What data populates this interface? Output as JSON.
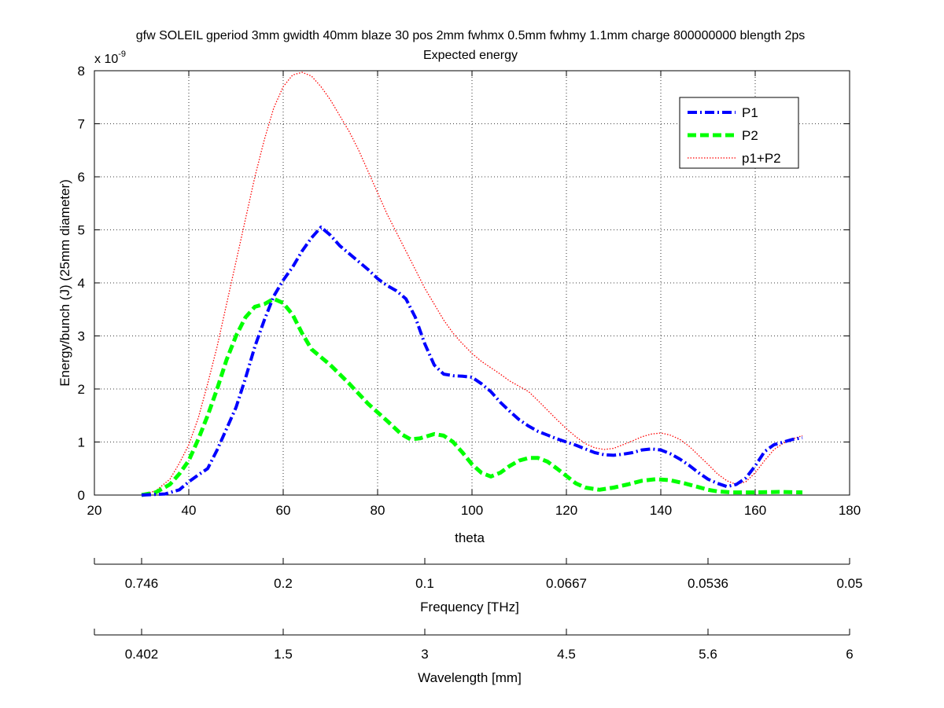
{
  "chart_data": {
    "type": "line",
    "title": "gfw SOLEIL gperiod 3mm gwidth 40mm blaze 30 pos 2mm fwhmx 0.5mm fwhmy 1.1mm charge 800000000 blength 2ps",
    "subtitle": "Expected energy",
    "xlabel": "theta",
    "ylabel": "Energy/bunch (J) (25mm diameter)",
    "y_multiplier_label": "x 10",
    "y_multiplier_exponent": "-9",
    "xlim": [
      20,
      180
    ],
    "ylim": [
      0,
      8
    ],
    "x_ticks": [
      20,
      40,
      60,
      80,
      100,
      120,
      140,
      160,
      180
    ],
    "y_ticks": [
      0,
      1,
      2,
      3,
      4,
      5,
      6,
      7,
      8
    ],
    "grid": true,
    "legend_position": "top-right",
    "series": [
      {
        "name": "P1",
        "color": "#0000ff",
        "style": "dash-dot",
        "x": [
          30,
          35,
          38,
          40,
          42,
          44,
          46,
          48,
          50,
          52,
          54,
          56,
          58,
          60,
          62,
          64,
          66,
          68,
          70,
          72,
          74,
          76,
          78,
          80,
          82,
          84,
          86,
          88,
          90,
          92,
          94,
          96,
          98,
          100,
          102,
          104,
          106,
          108,
          110,
          112,
          114,
          116,
          118,
          120,
          122,
          124,
          126,
          128,
          130,
          132,
          134,
          136,
          138,
          140,
          142,
          144,
          146,
          148,
          150,
          152,
          154,
          156,
          158,
          160,
          162,
          164,
          166,
          168,
          170
        ],
        "y": [
          0.0,
          0.02,
          0.1,
          0.25,
          0.38,
          0.5,
          0.85,
          1.25,
          1.65,
          2.2,
          2.8,
          3.3,
          3.75,
          4.05,
          4.3,
          4.6,
          4.85,
          5.05,
          4.9,
          4.7,
          4.55,
          4.4,
          4.25,
          4.08,
          3.95,
          3.85,
          3.7,
          3.35,
          2.85,
          2.45,
          2.28,
          2.25,
          2.24,
          2.22,
          2.1,
          1.95,
          1.75,
          1.58,
          1.42,
          1.3,
          1.2,
          1.13,
          1.06,
          1.0,
          0.94,
          0.87,
          0.8,
          0.76,
          0.75,
          0.77,
          0.8,
          0.85,
          0.87,
          0.85,
          0.78,
          0.68,
          0.56,
          0.42,
          0.3,
          0.22,
          0.16,
          0.2,
          0.32,
          0.55,
          0.82,
          0.95,
          1.0,
          1.05,
          1.08
        ]
      },
      {
        "name": "P2",
        "color": "#00ff00",
        "style": "dashed",
        "x": [
          30,
          33,
          36,
          38,
          40,
          42,
          44,
          46,
          48,
          50,
          52,
          54,
          56,
          58,
          60,
          62,
          64,
          66,
          68,
          70,
          74,
          78,
          82,
          85,
          87,
          89,
          92,
          94,
          96,
          98,
          100,
          102,
          104,
          106,
          108,
          110,
          112,
          114,
          116,
          118,
          120,
          122,
          124,
          127,
          130,
          133,
          136,
          139,
          142,
          145,
          148,
          150,
          152,
          155,
          160,
          165,
          170
        ],
        "y": [
          0.0,
          0.05,
          0.2,
          0.4,
          0.65,
          1.05,
          1.5,
          2.0,
          2.55,
          3.0,
          3.35,
          3.55,
          3.6,
          3.7,
          3.62,
          3.4,
          3.05,
          2.75,
          2.6,
          2.45,
          2.1,
          1.72,
          1.4,
          1.15,
          1.05,
          1.07,
          1.15,
          1.12,
          1.0,
          0.8,
          0.58,
          0.42,
          0.35,
          0.42,
          0.55,
          0.65,
          0.7,
          0.7,
          0.63,
          0.5,
          0.36,
          0.22,
          0.14,
          0.1,
          0.14,
          0.2,
          0.27,
          0.3,
          0.28,
          0.22,
          0.15,
          0.1,
          0.07,
          0.05,
          0.05,
          0.06,
          0.05
        ]
      },
      {
        "name": "p1+P2",
        "color": "#ff0000",
        "style": "dotted",
        "x": [
          30,
          33,
          36,
          38,
          40,
          42,
          44,
          46,
          48,
          50,
          52,
          54,
          56,
          58,
          60,
          62,
          64,
          66,
          68,
          70,
          72,
          74,
          76,
          78,
          80,
          82,
          84,
          86,
          88,
          90,
          92,
          94,
          96,
          98,
          100,
          102,
          104,
          106,
          108,
          110,
          112,
          114,
          116,
          118,
          120,
          122,
          124,
          126,
          128,
          130,
          132,
          134,
          136,
          138,
          140,
          142,
          144,
          146,
          148,
          150,
          152,
          154,
          156,
          158,
          160,
          162,
          164,
          166,
          168,
          170
        ],
        "y": [
          0.0,
          0.08,
          0.3,
          0.6,
          0.95,
          1.45,
          2.1,
          2.8,
          3.6,
          4.4,
          5.2,
          6.0,
          6.7,
          7.3,
          7.7,
          7.92,
          7.97,
          7.9,
          7.7,
          7.45,
          7.15,
          6.85,
          6.5,
          6.1,
          5.7,
          5.3,
          4.95,
          4.6,
          4.25,
          3.9,
          3.6,
          3.3,
          3.05,
          2.85,
          2.67,
          2.52,
          2.4,
          2.28,
          2.15,
          2.05,
          1.95,
          1.78,
          1.6,
          1.42,
          1.25,
          1.1,
          0.97,
          0.89,
          0.86,
          0.88,
          0.95,
          1.02,
          1.1,
          1.15,
          1.17,
          1.13,
          1.05,
          0.92,
          0.75,
          0.58,
          0.4,
          0.27,
          0.2,
          0.25,
          0.42,
          0.65,
          0.86,
          0.98,
          1.06,
          1.12
        ]
      }
    ],
    "secondary_axes": [
      {
        "label": "Frequency [THz]",
        "ticks": [
          {
            "theta": 30,
            "label": "0.746"
          },
          {
            "theta": 60,
            "label": "0.2"
          },
          {
            "theta": 90,
            "label": "0.1"
          },
          {
            "theta": 120,
            "label": "0.0667"
          },
          {
            "theta": 150,
            "label": "0.0536"
          },
          {
            "theta": 180,
            "label": "0.05"
          }
        ]
      },
      {
        "label": "Wavelength [mm]",
        "ticks": [
          {
            "theta": 30,
            "label": "0.402"
          },
          {
            "theta": 60,
            "label": "1.5"
          },
          {
            "theta": 90,
            "label": "3"
          },
          {
            "theta": 120,
            "label": "4.5"
          },
          {
            "theta": 150,
            "label": "5.6"
          },
          {
            "theta": 180,
            "label": "6"
          }
        ]
      }
    ]
  }
}
